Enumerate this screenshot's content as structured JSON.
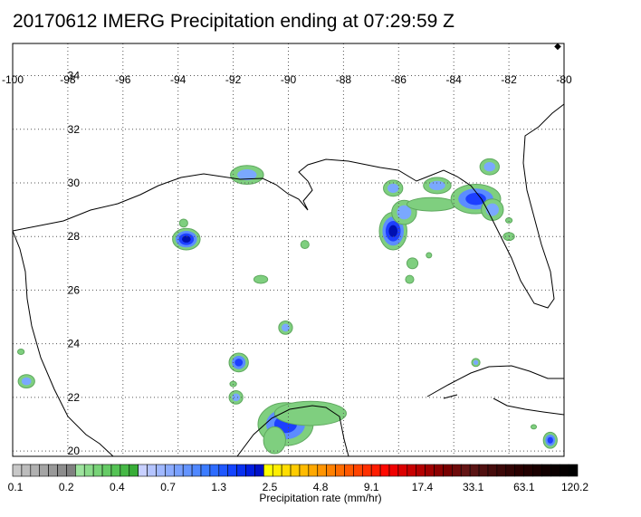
{
  "title": "20170612 IMERG Precipitation ending at 07:29:59 Z",
  "map": {
    "lon_range": [
      -100,
      -80
    ],
    "lat_range": [
      19.8,
      35.2
    ],
    "lon_ticks": [
      "-100",
      "-98",
      "-96",
      "-94",
      "-92",
      "-90",
      "-88",
      "-86",
      "-84",
      "-82",
      "-80"
    ],
    "lat_ticks": [
      "34",
      "32",
      "30",
      "28",
      "26",
      "24",
      "22",
      "20"
    ],
    "gridlines": "dotted"
  },
  "colorbar": {
    "title": "Precipitation rate (mm/hr)",
    "labels": [
      "0.1",
      "0.2",
      "0.4",
      "0.7",
      "1.3",
      "2.5",
      "4.8",
      "9.1",
      "17.4",
      "33.1",
      "63.1",
      "120.2"
    ],
    "colors": [
      "#c8c8c8",
      "#bcbcbc",
      "#b0b0b0",
      "#a4a4a4",
      "#989898",
      "#8c8c8c",
      "#808080",
      "#9ee39e",
      "#8bdb8b",
      "#78d378",
      "#66cb66",
      "#55c355",
      "#46b846",
      "#38ad38",
      "#c8d0ff",
      "#b4c4ff",
      "#a0b8ff",
      "#8cacff",
      "#78a0ff",
      "#6494ff",
      "#5088ff",
      "#3c7cff",
      "#2e6cff",
      "#2058ff",
      "#1444ff",
      "#0830f0",
      "#001ce0",
      "#0010c8",
      "#ffff00",
      "#ffee00",
      "#ffdd00",
      "#ffcc00",
      "#ffbb00",
      "#ffa800",
      "#ff9400",
      "#ff8000",
      "#ff6c00",
      "#ff5800",
      "#ff4400",
      "#ff3000",
      "#ff1c00",
      "#ff0800",
      "#f00000",
      "#dc0000",
      "#c80000",
      "#b40000",
      "#a00000",
      "#8c0000",
      "#780000",
      "#6e0a0a",
      "#641414",
      "#5a1414",
      "#501010",
      "#460c0c",
      "#3c0808",
      "#320404",
      "#2a0000",
      "#220000",
      "#1a0000",
      "#120000",
      "#0a0000",
      "#050000",
      "#000000"
    ]
  },
  "precip_cells": [
    {
      "lon": -99.5,
      "lat": 22.6,
      "rx": 0.3,
      "ry": 0.25,
      "level": 2
    },
    {
      "lon": -99.7,
      "lat": 23.7,
      "rx": 0.12,
      "ry": 0.1,
      "level": 1
    },
    {
      "lon": -91.5,
      "lat": 30.3,
      "rx": 0.6,
      "ry": 0.35,
      "level": 2
    },
    {
      "lon": -93.7,
      "lat": 27.9,
      "rx": 0.5,
      "ry": 0.4,
      "level": 4
    },
    {
      "lon": -93.8,
      "lat": 28.5,
      "rx": 0.15,
      "ry": 0.15,
      "level": 1
    },
    {
      "lon": -91.0,
      "lat": 26.4,
      "rx": 0.25,
      "ry": 0.15,
      "level": 1
    },
    {
      "lon": -90.1,
      "lat": 24.6,
      "rx": 0.25,
      "ry": 0.25,
      "level": 2
    },
    {
      "lon": -89.4,
      "lat": 27.7,
      "rx": 0.15,
      "ry": 0.15,
      "level": 1
    },
    {
      "lon": -91.8,
      "lat": 23.3,
      "rx": 0.35,
      "ry": 0.35,
      "level": 3
    },
    {
      "lon": -91.9,
      "lat": 22.0,
      "rx": 0.25,
      "ry": 0.25,
      "level": 2
    },
    {
      "lon": -92.0,
      "lat": 22.5,
      "rx": 0.12,
      "ry": 0.1,
      "level": 1
    },
    {
      "lon": -90.1,
      "lat": 21.0,
      "rx": 1.0,
      "ry": 0.8,
      "level": 3
    },
    {
      "lon": -89.2,
      "lat": 21.4,
      "rx": 1.3,
      "ry": 0.45,
      "level": 1
    },
    {
      "lon": -90.5,
      "lat": 20.4,
      "rx": 0.4,
      "ry": 0.5,
      "level": 1
    },
    {
      "lon": -86.2,
      "lat": 28.2,
      "rx": 0.5,
      "ry": 0.7,
      "level": 4
    },
    {
      "lon": -85.8,
      "lat": 28.9,
      "rx": 0.45,
      "ry": 0.45,
      "level": 2
    },
    {
      "lon": -84.8,
      "lat": 29.2,
      "rx": 0.9,
      "ry": 0.25,
      "level": 1
    },
    {
      "lon": -86.2,
      "lat": 29.8,
      "rx": 0.35,
      "ry": 0.3,
      "level": 2
    },
    {
      "lon": -84.6,
      "lat": 29.9,
      "rx": 0.5,
      "ry": 0.3,
      "level": 2
    },
    {
      "lon": -83.2,
      "lat": 29.4,
      "rx": 0.9,
      "ry": 0.55,
      "level": 3
    },
    {
      "lon": -82.6,
      "lat": 29.0,
      "rx": 0.4,
      "ry": 0.4,
      "level": 2
    },
    {
      "lon": -82.7,
      "lat": 30.6,
      "rx": 0.35,
      "ry": 0.3,
      "level": 2
    },
    {
      "lon": -82.0,
      "lat": 28.0,
      "rx": 0.2,
      "ry": 0.15,
      "level": 1
    },
    {
      "lon": -82.0,
      "lat": 28.6,
      "rx": 0.12,
      "ry": 0.1,
      "level": 1
    },
    {
      "lon": -85.5,
      "lat": 27.0,
      "rx": 0.2,
      "ry": 0.2,
      "level": 1
    },
    {
      "lon": -85.6,
      "lat": 26.4,
      "rx": 0.15,
      "ry": 0.15,
      "level": 1
    },
    {
      "lon": -84.9,
      "lat": 27.3,
      "rx": 0.1,
      "ry": 0.1,
      "level": 1
    },
    {
      "lon": -83.2,
      "lat": 23.3,
      "rx": 0.15,
      "ry": 0.15,
      "level": 2
    },
    {
      "lon": -80.5,
      "lat": 20.4,
      "rx": 0.25,
      "ry": 0.3,
      "level": 3
    },
    {
      "lon": -81.1,
      "lat": 20.9,
      "rx": 0.1,
      "ry": 0.08,
      "level": 1
    }
  ]
}
